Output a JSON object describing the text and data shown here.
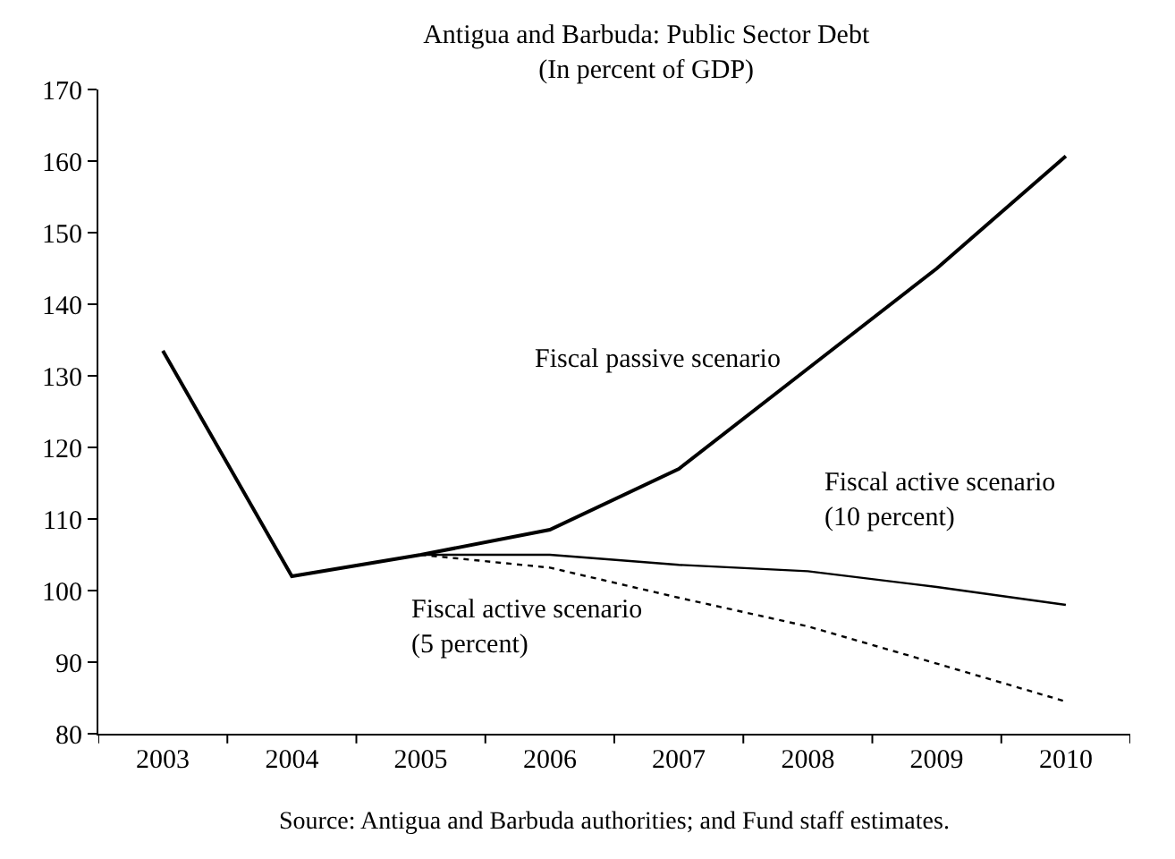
{
  "chart_data": {
    "type": "line",
    "title": "Antigua and Barbuda: Public Sector Debt",
    "subtitle": "(In percent of GDP)",
    "categories": [
      "2003",
      "2004",
      "2005",
      "2006",
      "2007",
      "2008",
      "2009",
      "2010"
    ],
    "series": [
      {
        "name": "Fiscal passive scenario",
        "color": "#000000",
        "line_style": "solid",
        "values": [
          133.5,
          102,
          105,
          108.5,
          117,
          131,
          145,
          160.7
        ]
      },
      {
        "name": "Fiscal active scenario\n(10 percent)",
        "color": "#000000",
        "line_style": "solid",
        "values": [
          null,
          null,
          105,
          105,
          103.6,
          102.7,
          100.5,
          98
        ]
      },
      {
        "name": "Fiscal active scenario\n(5 percent)",
        "color": "#000000",
        "line_style": "dotted",
        "values": [
          null,
          null,
          105,
          103.2,
          99,
          95,
          89.8,
          84.5
        ]
      }
    ],
    "ylim": [
      80,
      170
    ],
    "yticks": [
      80,
      90,
      100,
      110,
      120,
      130,
      140,
      150,
      160,
      170
    ],
    "grid": false,
    "legend": false,
    "marker": "none",
    "annotations": [
      "Source: Antigua and Barbuda authorities; and Fund staff estimates."
    ]
  }
}
